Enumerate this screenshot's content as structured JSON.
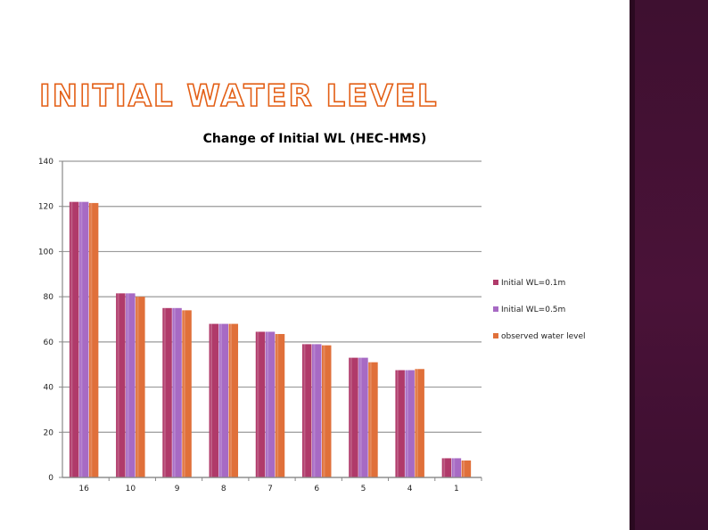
{
  "slide": {
    "title": "INITIAL WATER LEVEL"
  },
  "colors": {
    "accent": "#e35f16",
    "panel": "#4a1238"
  },
  "chart_data": {
    "type": "bar",
    "title": "Change of Initial WL (HEC-HMS)",
    "xlabel": "",
    "ylabel": "",
    "categories": [
      "16",
      "10",
      "9",
      "8",
      "7",
      "6",
      "5",
      "4",
      "1"
    ],
    "ylim": [
      0,
      140
    ],
    "yticks": [
      0,
      20,
      40,
      60,
      80,
      100,
      120,
      140
    ],
    "grid": true,
    "legend_position": "right",
    "series": [
      {
        "name": "Initial WL=0.1m",
        "color": "#b03a6a",
        "values": [
          122,
          81.5,
          75,
          68,
          64.5,
          59,
          53,
          47.5,
          8.5
        ]
      },
      {
        "name": "Initial WL=0.5m",
        "color": "#a76ac4",
        "values": [
          122,
          81.5,
          75,
          68,
          64.5,
          59,
          53,
          47.5,
          8.5
        ]
      },
      {
        "name": "observed water level",
        "color": "#e0703a",
        "values": [
          121.5,
          80,
          74,
          68,
          63.5,
          58.5,
          51,
          48,
          7.5
        ]
      }
    ]
  }
}
